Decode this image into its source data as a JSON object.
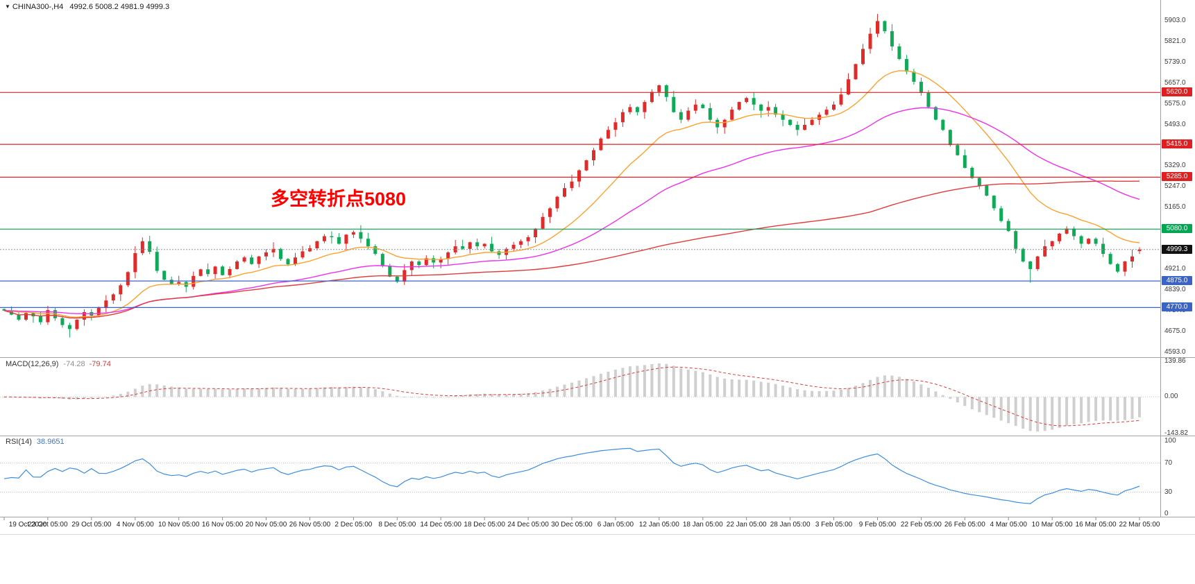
{
  "header": {
    "collapse_icon": "▼",
    "symbol": "CHINA300-,H4",
    "ohlc_text": "4992.6 5008.2 4981.9 4999.3"
  },
  "annotation": {
    "text": "多空转折点5080",
    "color": "#ff0000"
  },
  "colors": {
    "bull_candle": "#e02b2b",
    "bear_candle": "#0fa958",
    "ma_fast": "#ffa12c",
    "ma_medium": "#ee30ee",
    "ma_slow": "#e23b3b",
    "macd_histogram": "#cfcfcf",
    "macd_signal": "#e03a3a",
    "rsi_line": "#3c8ddc",
    "current_price": "#111111"
  },
  "panels": {
    "macd": {
      "title": "MACD(12,26,9)",
      "main_value": "-74.28",
      "signal_value": "-79.74",
      "axis_labels": [
        "139.86",
        "0.00",
        "-143.82"
      ],
      "ylim": [
        -143.82,
        139.86
      ]
    },
    "rsi": {
      "title": "RSI(14)",
      "value": "38.9651",
      "axis_labels": [
        "100",
        "70",
        "30",
        "0"
      ],
      "levels": [
        70,
        30
      ],
      "ylim": [
        0,
        100
      ]
    }
  },
  "chart_data": {
    "type": "candlestick",
    "symbol": "CHINA300-",
    "timeframe": "H4",
    "ylim": [
      4593.0,
      5903.0
    ],
    "y_ticks": [
      "5903.0",
      "5821.0",
      "5739.0",
      "5657.0",
      "5575.0",
      "5493.0",
      "5411.0",
      "5329.0",
      "5247.0",
      "5165.0",
      "5083.0",
      "5001.0",
      "4921.0",
      "4839.0",
      "4757.0",
      "4675.0",
      "4593.0"
    ],
    "x_labels": [
      "19 Oct 2020",
      "23 Oct 05:00",
      "29 Oct 05:00",
      "4 Nov 05:00",
      "10 Nov 05:00",
      "16 Nov 05:00",
      "20 Nov 05:00",
      "26 Nov 05:00",
      "2 Dec 05:00",
      "8 Dec 05:00",
      "14 Dec 05:00",
      "18 Dec 05:00",
      "24 Dec 05:00",
      "30 Dec 05:00",
      "6 Jan 05:00",
      "12 Jan 05:00",
      "18 Jan 05:00",
      "22 Jan 05:00",
      "28 Jan 05:00",
      "3 Feb 05:00",
      "9 Feb 05:00",
      "22 Feb 05:00",
      "26 Feb 05:00",
      "4 Mar 05:00",
      "10 Mar 05:00",
      "16 Mar 05:00",
      "22 Mar 05:00"
    ],
    "bars_per_label": 6,
    "closes": [
      4758,
      4742,
      4722,
      4748,
      4735,
      4712,
      4760,
      4728,
      4701,
      4685,
      4722,
      4752,
      4738,
      4768,
      4798,
      4822,
      4858,
      4910,
      4985,
      5032,
      4990,
      4915,
      4880,
      4862,
      4871,
      4852,
      4895,
      4921,
      4902,
      4932,
      4898,
      4922,
      4952,
      4968,
      4942,
      4972,
      4988,
      5002,
      4962,
      4941,
      4968,
      4992,
      5004,
      5032,
      5052,
      5048,
      5022,
      5058,
      5068,
      5042,
      5012,
      4982,
      4935,
      4892,
      4872,
      4918,
      4952,
      4938,
      4965,
      4948,
      4962,
      4988,
      5012,
      5002,
      5028,
      5012,
      5022,
      4992,
      4978,
      5002,
      5018,
      5032,
      5048,
      5082,
      5128,
      5162,
      5208,
      5242,
      5268,
      5312,
      5352,
      5392,
      5438,
      5472,
      5502,
      5542,
      5562,
      5542,
      5582,
      5622,
      5648,
      5602,
      5542,
      5512,
      5548,
      5572,
      5558,
      5512,
      5482,
      5512,
      5552,
      5582,
      5598,
      5572,
      5548,
      5562,
      5532,
      5512,
      5492,
      5472,
      5492,
      5512,
      5532,
      5552,
      5572,
      5612,
      5672,
      5732,
      5792,
      5852,
      5902,
      5862,
      5802,
      5752,
      5702,
      5662,
      5618,
      5562,
      5512,
      5472,
      5412,
      5372,
      5322,
      5282,
      5252,
      5212,
      5162,
      5112,
      5072,
      5002,
      4952,
      4922,
      4972,
      5012,
      5032,
      5062,
      5082,
      5052,
      5022,
      5042,
      5022,
      4982,
      4942,
      4912,
      4952,
      4972,
      4999.3
    ],
    "last_bar": {
      "open": 4992.6,
      "high": 5008.2,
      "low": 4981.9,
      "close": 4999.3
    },
    "wick_overrides": [
      {
        "index": 120,
        "high": 5930
      },
      {
        "index": 9,
        "low": 4652
      },
      {
        "index": 141,
        "low": 4868
      }
    ],
    "overlays": [
      {
        "name": "ma-fast-line",
        "kind": "ema",
        "period": 16,
        "color_key": "ma_fast"
      },
      {
        "name": "ma-medium-line",
        "kind": "ema",
        "period": 45,
        "color_key": "ma_medium"
      },
      {
        "name": "ma-slow-line",
        "kind": "sma",
        "period": 120,
        "color_key": "ma_slow"
      }
    ],
    "levels": [
      {
        "label": "5620.0",
        "value": 5620.0,
        "color": "#e02020",
        "role": "resistance"
      },
      {
        "label": "5415.0",
        "value": 5415.0,
        "color": "#e02020",
        "role": "resistance"
      },
      {
        "label": "5285.0",
        "value": 5285.0,
        "color": "#e02020",
        "role": "resistance"
      },
      {
        "label": "5080.0",
        "value": 5080.0,
        "color": "#00a651",
        "role": "pivot"
      },
      {
        "label": "4875.0",
        "value": 4875.0,
        "color": "#3a63c8",
        "role": "support"
      },
      {
        "label": "4770.0",
        "value": 4770.0,
        "color": "#3a63c8",
        "role": "support"
      }
    ],
    "current_price": {
      "label": "4999.3",
      "value": 4999.3
    },
    "indicators": [
      {
        "name": "MACD",
        "params": [
          12,
          26,
          9
        ],
        "current": [
          -74.28,
          -79.74
        ],
        "ylim": [
          -143.82,
          139.86
        ]
      },
      {
        "name": "RSI",
        "params": [
          14
        ],
        "current": 38.9651,
        "ylim": [
          0,
          100
        ],
        "levels": [
          70,
          30
        ]
      }
    ]
  }
}
